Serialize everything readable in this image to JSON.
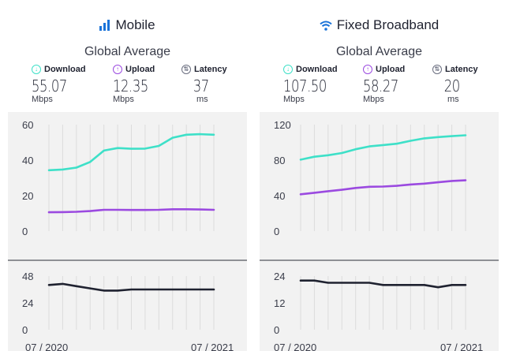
{
  "colors": {
    "download": "#3ee0c8",
    "upload": "#9b4ae0",
    "latency": "#1f2230",
    "latency_icon": "#6b6f80",
    "signal_icon": "#1a73d9"
  },
  "panels": [
    {
      "title": "Mobile",
      "icon": "signal-bars-icon",
      "subtitle": "Global Average",
      "metrics": {
        "download": {
          "label": "Download",
          "value": "55.07",
          "unit": "Mbps"
        },
        "upload": {
          "label": "Upload",
          "value": "12.35",
          "unit": "Mbps"
        },
        "latency": {
          "label": "Latency",
          "value": "37",
          "unit": "ms"
        }
      },
      "x_start": "07 / 2020",
      "x_end": "07 / 2021"
    },
    {
      "title": "Fixed Broadband",
      "icon": "wifi-icon",
      "subtitle": "Global Average",
      "metrics": {
        "download": {
          "label": "Download",
          "value": "107.50",
          "unit": "Mbps"
        },
        "upload": {
          "label": "Upload",
          "value": "58.27",
          "unit": "Mbps"
        },
        "latency": {
          "label": "Latency",
          "value": "20",
          "unit": "ms"
        }
      },
      "x_start": "07 / 2020",
      "x_end": "07 / 2021"
    }
  ],
  "chart_data": [
    {
      "type": "line",
      "title": "Mobile",
      "x": [
        "07/2020",
        "08/2020",
        "09/2020",
        "10/2020",
        "11/2020",
        "12/2020",
        "01/2021",
        "02/2021",
        "03/2021",
        "04/2021",
        "05/2021",
        "06/2021",
        "07/2021"
      ],
      "series": [
        {
          "name": "Download",
          "values": [
            34.3,
            34.7,
            35.8,
            39.0,
            45.4,
            46.8,
            46.4,
            46.5,
            48.0,
            52.6,
            54.3,
            54.6,
            54.3
          ]
        },
        {
          "name": "Upload",
          "values": [
            10.6,
            10.7,
            10.9,
            11.3,
            12.0,
            12.0,
            11.9,
            11.9,
            12.0,
            12.3,
            12.3,
            12.2,
            12.0
          ]
        }
      ],
      "yticks": [
        0,
        20,
        40,
        60
      ],
      "ylim": [
        0,
        60
      ]
    },
    {
      "type": "line",
      "title": "Mobile",
      "x": [
        "07/2020",
        "08/2020",
        "09/2020",
        "10/2020",
        "11/2020",
        "12/2020",
        "01/2021",
        "02/2021",
        "03/2021",
        "04/2021",
        "05/2021",
        "06/2021",
        "07/2021"
      ],
      "series": [
        {
          "name": "Latency",
          "values": [
            40,
            41,
            39,
            37,
            35,
            35,
            36,
            36,
            36,
            36,
            36,
            36,
            36
          ]
        }
      ],
      "yticks": [
        0,
        24,
        48
      ],
      "ylim": [
        0,
        48
      ]
    },
    {
      "type": "line",
      "title": "Fixed Broadband",
      "x": [
        "07/2020",
        "08/2020",
        "09/2020",
        "10/2020",
        "11/2020",
        "12/2020",
        "01/2021",
        "02/2021",
        "03/2021",
        "04/2021",
        "05/2021",
        "06/2021",
        "07/2021"
      ],
      "series": [
        {
          "name": "Download",
          "values": [
            80.5,
            83.8,
            85.5,
            88.0,
            92.3,
            95.5,
            97.0,
            98.5,
            101.8,
            104.5,
            106.0,
            107.0,
            108.0
          ]
        },
        {
          "name": "Upload",
          "values": [
            41.5,
            43.2,
            45.0,
            46.6,
            48.6,
            50.0,
            50.2,
            51.0,
            52.5,
            53.5,
            55.0,
            56.5,
            57.2
          ]
        }
      ],
      "yticks": [
        0,
        40,
        80,
        120
      ],
      "ylim": [
        0,
        120
      ]
    },
    {
      "type": "line",
      "title": "Fixed Broadband",
      "x": [
        "07/2020",
        "08/2020",
        "09/2020",
        "10/2020",
        "11/2020",
        "12/2020",
        "01/2021",
        "02/2021",
        "03/2021",
        "04/2021",
        "05/2021",
        "06/2021",
        "07/2021"
      ],
      "series": [
        {
          "name": "Latency",
          "values": [
            22,
            22,
            21,
            21,
            21,
            21,
            20,
            20,
            20,
            20,
            19,
            20,
            20
          ]
        }
      ],
      "yticks": [
        0,
        12,
        24
      ],
      "ylim": [
        0,
        24
      ]
    }
  ]
}
